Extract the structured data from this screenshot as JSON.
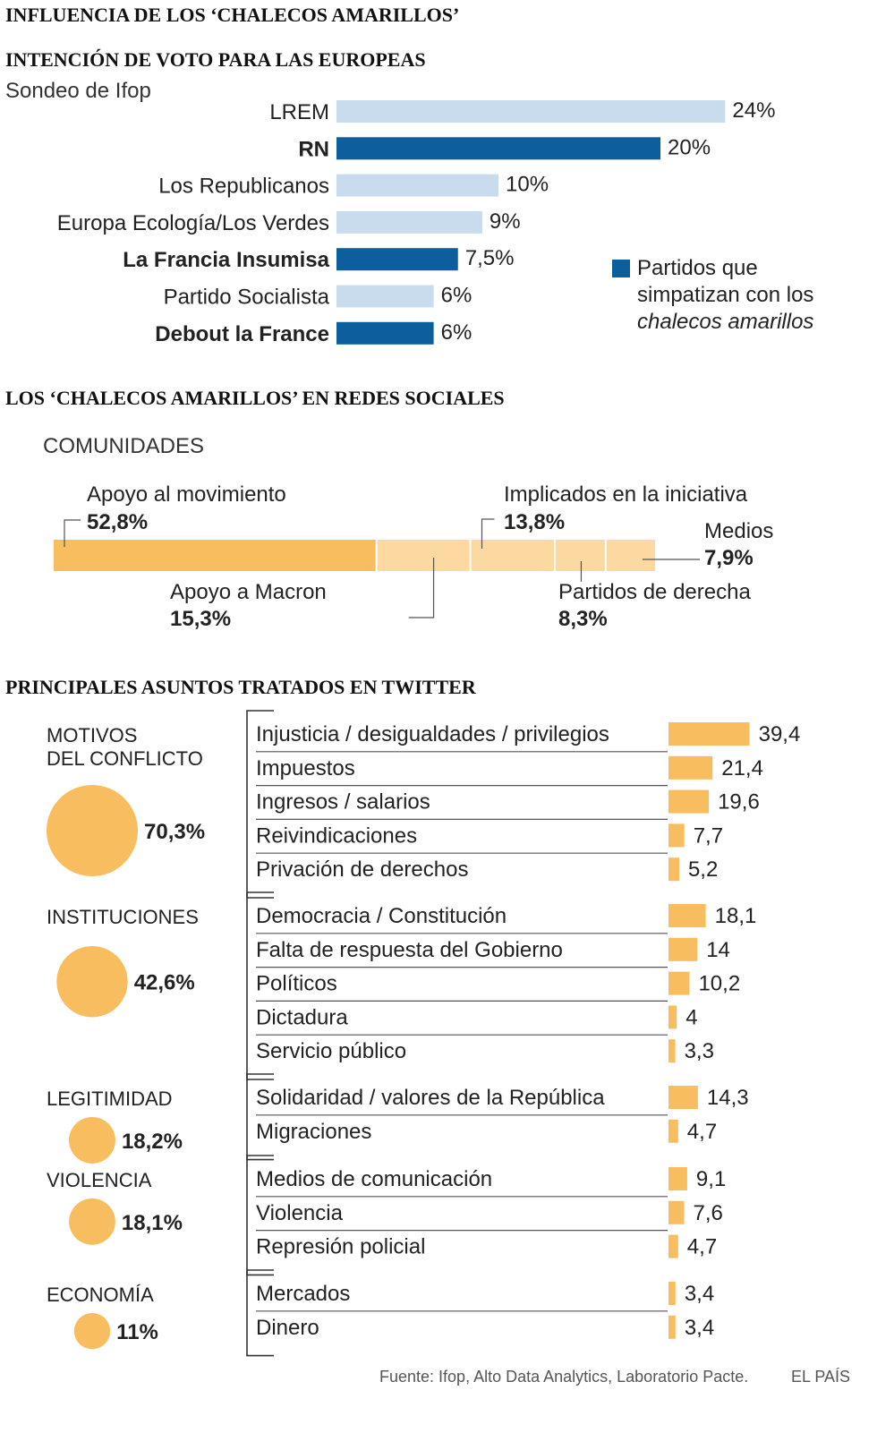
{
  "header": {
    "title": "INFLUENCIA DE LOS ‘CHALECOS AMARILLOS’",
    "source": "Fuente: Ifop, Alto Data Analytics, Laboratorio Pacte.",
    "brand": "EL PAÍS"
  },
  "colors": {
    "dark_blue": "#0c5f9c",
    "light_blue": "#c9dcee",
    "orange": "#f7bd5f",
    "light_orange": "#fcd9a0"
  },
  "chart_data": [
    {
      "type": "bar",
      "title": "INTENCIÓN DE VOTO PARA LAS EUROPEAS",
      "subtitle": "Sondeo de Ifop",
      "categories": [
        "LREM",
        "RN",
        "Los Republicanos",
        "Europa Ecología/Los Verdes",
        "La Francia Insumisa",
        "Partido Socialista",
        "Debout la France"
      ],
      "values": [
        24,
        20,
        10,
        9,
        7.5,
        6,
        6
      ],
      "value_labels": [
        "24%",
        "20%",
        "10%",
        "9%",
        "7,5%",
        "6%",
        "6%"
      ],
      "highlighted": [
        false,
        true,
        false,
        false,
        true,
        false,
        true
      ],
      "legend": [
        "Partidos que",
        "simpatizan con los",
        "chalecos amarillos"
      ],
      "legend_position": "right"
    },
    {
      "type": "bar",
      "title": "LOS ‘CHALECOS AMARILLOS’ EN REDES SOCIALES",
      "subtitle": "COMUNIDADES",
      "stacked": true,
      "categories": [
        "Apoyo al movimiento",
        "Apoyo a Macron",
        "Implicados en la iniciativa",
        "Partidos de derecha",
        "Medios"
      ],
      "values": [
        52.8,
        15.3,
        13.8,
        8.3,
        7.9
      ],
      "value_labels": [
        "52,8%",
        "15,3%",
        "13,8%",
        "8,3%",
        "7,9%"
      ]
    },
    {
      "type": "bar",
      "title": "PRINCIPALES ASUNTOS TRATADOS EN TWITTER",
      "groups": [
        {
          "name": "MOTIVOS DEL CONFLICTO",
          "name_lines": [
            "MOTIVOS",
            "DEL CONFLICTO"
          ],
          "share": 70.3,
          "share_label": "70,3%",
          "categories": [
            "Injusticia / desigualdades / privilegios",
            "Impuestos",
            "Ingresos / salarios",
            "Reivindicaciones",
            "Privación de derechos"
          ],
          "values": [
            39.4,
            21.4,
            19.6,
            7.7,
            5.2
          ],
          "value_labels": [
            "39,4",
            "21,4",
            "19,6",
            "7,7",
            "5,2"
          ]
        },
        {
          "name": "INSTITUCIONES",
          "name_lines": [
            "INSTITUCIONES"
          ],
          "share": 42.6,
          "share_label": "42,6%",
          "categories": [
            "Democracia / Constitución",
            "Falta de respuesta del Gobierno",
            "Políticos",
            "Dictadura",
            "Servicio público"
          ],
          "values": [
            18.1,
            14,
            10.2,
            4,
            3.3
          ],
          "value_labels": [
            "18,1",
            "14",
            "10,2",
            "4",
            "3,3"
          ]
        },
        {
          "name": "LEGITIMIDAD",
          "name_lines": [
            "LEGITIMIDAD"
          ],
          "share": 18.2,
          "share_label": "18,2%",
          "categories": [
            "Solidaridad / valores de la República",
            "Migraciones"
          ],
          "values": [
            14.3,
            4.7
          ],
          "value_labels": [
            "14,3",
            "4,7"
          ]
        },
        {
          "name": "VIOLENCIA",
          "name_lines": [
            "VIOLENCIA"
          ],
          "share": 18.1,
          "share_label": "18,1%",
          "categories": [
            "Medios de comunicación",
            "Violencia",
            "Represión policial"
          ],
          "values": [
            9.1,
            7.6,
            4.7
          ],
          "value_labels": [
            "9,1",
            "7,6",
            "4,7"
          ]
        },
        {
          "name": "ECONOMÍA",
          "name_lines": [
            "ECONOMÍA"
          ],
          "share": 11,
          "share_label": "11%",
          "categories": [
            "Mercados",
            "Dinero"
          ],
          "values": [
            3.4,
            3.4
          ],
          "value_labels": [
            "3,4",
            "3,4"
          ]
        }
      ]
    }
  ]
}
